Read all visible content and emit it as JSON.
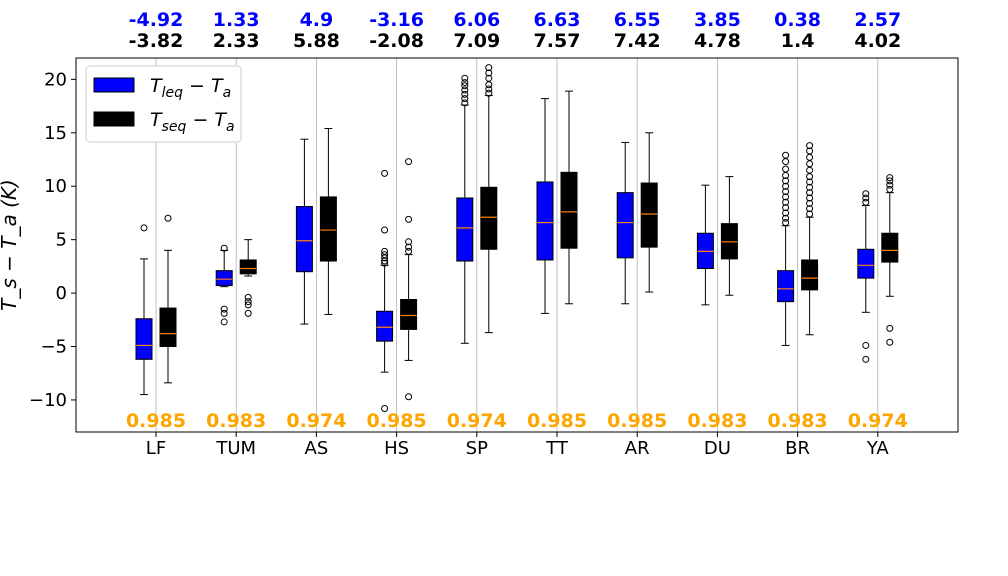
{
  "chart_data": {
    "type": "box",
    "ylabel": "$T_s - T_a (K)$",
    "ylabel_display": "T_s − T_a (K)",
    "ylim": [
      -13,
      22
    ],
    "yticks": [
      -10,
      -5,
      0,
      5,
      10,
      15,
      20
    ],
    "categories": [
      "LF",
      "TUM",
      "AS",
      "HS",
      "SP",
      "TT",
      "AR",
      "DU",
      "BR",
      "YA"
    ],
    "legend": {
      "position": "upper left",
      "entries": [
        {
          "label_main": "T",
          "label_sub": "leq",
          "label_rest": " − T",
          "label_sub2": "a",
          "color": "#0000ff"
        },
        {
          "label_main": "T",
          "label_sub": "seq",
          "label_rest": " − T",
          "label_sub2": "a",
          "color": "#000000"
        }
      ]
    },
    "top_labels_blue": [
      "-4.92",
      "1.33",
      "4.9",
      "-3.16",
      "6.06",
      "6.63",
      "6.55",
      "3.85",
      "0.38",
      "2.57"
    ],
    "top_labels_black": [
      "-3.82",
      "2.33",
      "5.88",
      "-2.08",
      "7.09",
      "7.57",
      "7.42",
      "4.78",
      "1.4",
      "4.02"
    ],
    "bottom_labels": [
      "0.985",
      "0.983",
      "0.974",
      "0.985",
      "0.974",
      "0.985",
      "0.985",
      "0.983",
      "0.983",
      "0.974"
    ],
    "colors": {
      "leq": "#0000ff",
      "seq": "#000000",
      "bottom_labels": "#ffa500",
      "top_blue": "#0000ff",
      "top_black": "#000000",
      "median": "#ff7f0e",
      "grid": "#b0b0b0"
    },
    "series": [
      {
        "key": "leq",
        "boxes": [
          {
            "whislo": -9.5,
            "q1": -6.2,
            "median": -4.9,
            "q3": -2.4,
            "whishi": 3.2,
            "fliers": [
              6.1
            ]
          },
          {
            "whislo": 0.6,
            "q1": 0.7,
            "median": 1.3,
            "q3": 2.1,
            "whishi": 4.0,
            "fliers": [
              4.2,
              -1.5,
              -1.9,
              -2.7
            ]
          },
          {
            "whislo": -2.9,
            "q1": 2.0,
            "median": 4.9,
            "q3": 8.1,
            "whishi": 14.4,
            "fliers": []
          },
          {
            "whislo": -7.4,
            "q1": -4.5,
            "median": -3.2,
            "q3": -1.7,
            "whishi": 2.6,
            "fliers": [
              2.8,
              3.0,
              3.3,
              3.6,
              3.9,
              5.9,
              11.2,
              -10.8
            ]
          },
          {
            "whislo": -4.7,
            "q1": 3.0,
            "median": 6.1,
            "q3": 8.9,
            "whishi": 17.6,
            "fliers": [
              17.8,
              18.2,
              18.6,
              19.0,
              19.4,
              19.7,
              20.1
            ]
          },
          {
            "whislo": -1.9,
            "q1": 3.1,
            "median": 6.6,
            "q3": 10.4,
            "whishi": 18.2,
            "fliers": []
          },
          {
            "whislo": -1.0,
            "q1": 3.3,
            "median": 6.6,
            "q3": 9.4,
            "whishi": 14.1,
            "fliers": []
          },
          {
            "whislo": -1.1,
            "q1": 2.3,
            "median": 3.9,
            "q3": 5.6,
            "whishi": 10.1,
            "fliers": []
          },
          {
            "whislo": -4.9,
            "q1": -0.8,
            "median": 0.4,
            "q3": 2.1,
            "whishi": 6.3,
            "fliers": [
              6.6,
              7.0,
              7.5,
              8.0,
              8.5,
              9.0,
              9.5,
              10.0,
              10.5,
              11.0,
              11.6,
              12.3,
              12.9
            ]
          },
          {
            "whislo": -1.8,
            "q1": 1.4,
            "median": 2.6,
            "q3": 4.1,
            "whishi": 8.2,
            "fliers": [
              8.5,
              8.9,
              9.3,
              -4.9,
              -6.2
            ]
          }
        ]
      },
      {
        "key": "seq",
        "boxes": [
          {
            "whislo": -8.4,
            "q1": -5.0,
            "median": -3.8,
            "q3": -1.4,
            "whishi": 4.0,
            "fliers": [
              7.0
            ]
          },
          {
            "whislo": 1.6,
            "q1": 1.8,
            "median": 2.3,
            "q3": 3.1,
            "whishi": 5.0,
            "fliers": [
              -0.4,
              -0.8,
              -1.1,
              -1.9
            ]
          },
          {
            "whislo": -2.0,
            "q1": 3.0,
            "median": 5.9,
            "q3": 9.0,
            "whishi": 15.4,
            "fliers": []
          },
          {
            "whislo": -6.3,
            "q1": -3.4,
            "median": -2.1,
            "q3": -0.6,
            "whishi": 3.6,
            "fliers": [
              3.9,
              4.3,
              4.8,
              6.9,
              12.3,
              -9.7
            ]
          },
          {
            "whislo": -3.7,
            "q1": 4.1,
            "median": 7.1,
            "q3": 9.9,
            "whishi": 18.5,
            "fliers": [
              18.7,
              19.1,
              19.5,
              20.1,
              20.6,
              21.1
            ]
          },
          {
            "whislo": -1.0,
            "q1": 4.2,
            "median": 7.6,
            "q3": 11.3,
            "whishi": 18.9,
            "fliers": []
          },
          {
            "whislo": 0.1,
            "q1": 4.3,
            "median": 7.4,
            "q3": 10.3,
            "whishi": 15.0,
            "fliers": []
          },
          {
            "whislo": -0.2,
            "q1": 3.2,
            "median": 4.8,
            "q3": 6.5,
            "whishi": 10.9,
            "fliers": []
          },
          {
            "whislo": -3.9,
            "q1": 0.3,
            "median": 1.4,
            "q3": 3.1,
            "whishi": 7.1,
            "fliers": [
              7.4,
              7.9,
              8.4,
              8.9,
              9.4,
              9.9,
              10.4,
              10.9,
              11.5,
              12.1,
              12.7,
              13.3,
              13.8
            ]
          },
          {
            "whislo": -0.3,
            "q1": 2.9,
            "median": 4.0,
            "q3": 5.6,
            "whishi": 9.4,
            "fliers": [
              9.7,
              10.1,
              10.5,
              10.8,
              -3.3,
              -4.6
            ]
          }
        ]
      }
    ]
  }
}
